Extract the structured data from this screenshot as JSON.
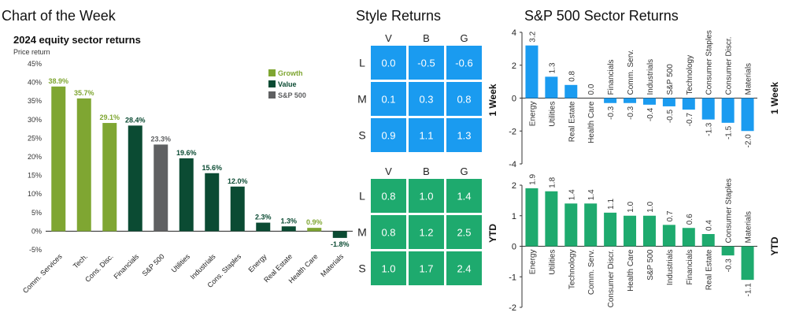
{
  "headers": {
    "chart_of_week": "Chart of the Week",
    "style_returns": "Style Returns",
    "sector_returns": "S&P 500 Sector Returns"
  },
  "colors": {
    "growth": "#7FA632",
    "value": "#0B4B33",
    "sp500": "#5F6062",
    "blue": "#1A9BF0",
    "green": "#1EAA6E"
  },
  "chart_data": [
    {
      "type": "bar",
      "title": "2024 equity sector returns",
      "subtitle": "Price return",
      "categories": [
        "Comm. Services",
        "Tech.",
        "Cons. Disc.",
        "Financials",
        "S&P 500",
        "Utilities",
        "Industrials",
        "Cons. Staples",
        "Energy",
        "Real Estate",
        "Health Care",
        "Materials"
      ],
      "values": [
        38.9,
        35.7,
        29.1,
        28.4,
        23.3,
        19.6,
        15.6,
        12.0,
        2.3,
        1.3,
        0.9,
        -1.8
      ],
      "value_labels": [
        "38.9%",
        "35.7%",
        "29.1%",
        "28.4%",
        "23.3%",
        "19.6%",
        "15.6%",
        "12.0%",
        "2.3%",
        "1.3%",
        "0.9%",
        "-1.8%"
      ],
      "groups": [
        "Growth",
        "Growth",
        "Growth",
        "Value",
        "S&P 500",
        "Value",
        "Value",
        "Value",
        "Value",
        "Value",
        "Growth",
        "Value"
      ],
      "legend": [
        "Growth",
        "Value",
        "S&P 500"
      ],
      "legend_position": "top-right",
      "ylim": [
        -5,
        45
      ],
      "yticks": [
        -5,
        0,
        5,
        10,
        15,
        20,
        25,
        30,
        35,
        40,
        45
      ],
      "ytick_labels": [
        "-5%",
        "0%",
        "5%",
        "10%",
        "15%",
        "20%",
        "25%",
        "30%",
        "35%",
        "40%",
        "45%"
      ]
    },
    {
      "type": "heatmap",
      "title": "Style Returns",
      "columns": [
        "V",
        "B",
        "G"
      ],
      "panels": [
        {
          "label": "1 Week",
          "rows": [
            {
              "label": "L",
              "values": [
                "0.0",
                "-0.5",
                "-0.6"
              ]
            },
            {
              "label": "M",
              "values": [
                "0.1",
                "0.3",
                "0.8"
              ]
            },
            {
              "label": "S",
              "values": [
                "0.9",
                "1.1",
                "1.3"
              ]
            }
          ]
        },
        {
          "label": "YTD",
          "rows": [
            {
              "label": "L",
              "values": [
                "0.8",
                "1.0",
                "1.4"
              ]
            },
            {
              "label": "M",
              "values": [
                "0.8",
                "1.2",
                "2.5"
              ]
            },
            {
              "label": "S",
              "values": [
                "1.0",
                "1.7",
                "2.4"
              ]
            }
          ]
        }
      ]
    },
    {
      "type": "bar",
      "title": "S&P 500 Sector Returns",
      "label": "1 Week",
      "categories": [
        "Energy",
        "Utilities",
        "Real Estate",
        "Health Care",
        "Financials",
        "Comm. Serv.",
        "Industrials",
        "S&P 500",
        "Technology",
        "Consumer Staples",
        "Consumer Discr.",
        "Materials"
      ],
      "values": [
        3.2,
        1.3,
        0.8,
        0.0,
        -0.3,
        -0.3,
        -0.4,
        -0.5,
        -0.7,
        -1.3,
        -1.5,
        -2.0
      ],
      "value_labels": [
        "3.2",
        "1.3",
        "0.8",
        "0.0",
        "-0.3",
        "-0.3",
        "-0.4",
        "-0.5",
        "-0.7",
        "-1.3",
        "-1.5",
        "-2.0"
      ],
      "ylim": [
        -4,
        4
      ],
      "yticks": [
        -4,
        -2,
        0,
        2,
        4
      ],
      "ytick_labels": [
        "-4",
        "-2",
        "0",
        "2",
        "4"
      ]
    },
    {
      "type": "bar",
      "label": "YTD",
      "categories": [
        "Energy",
        "Utilities",
        "Technology",
        "Comm. Serv.",
        "Consumer Discr.",
        "Health Care",
        "S&P 500",
        "Industrials",
        "Financials",
        "Real Estate",
        "Consumer Staples",
        "Materials"
      ],
      "values": [
        1.9,
        1.8,
        1.4,
        1.4,
        1.1,
        1.0,
        1.0,
        0.7,
        0.6,
        0.4,
        -0.3,
        -1.1
      ],
      "value_labels": [
        "1.9",
        "1.8",
        "1.4",
        "1.4",
        "1.1",
        "1.0",
        "1.0",
        "0.7",
        "0.6",
        "0.4",
        "-0.3",
        "-1.1"
      ],
      "ylim": [
        -2,
        2
      ],
      "yticks": [
        -2,
        -1,
        0,
        1,
        2
      ],
      "ytick_labels": [
        "-2",
        "-1",
        "0",
        "1",
        "2"
      ]
    }
  ]
}
